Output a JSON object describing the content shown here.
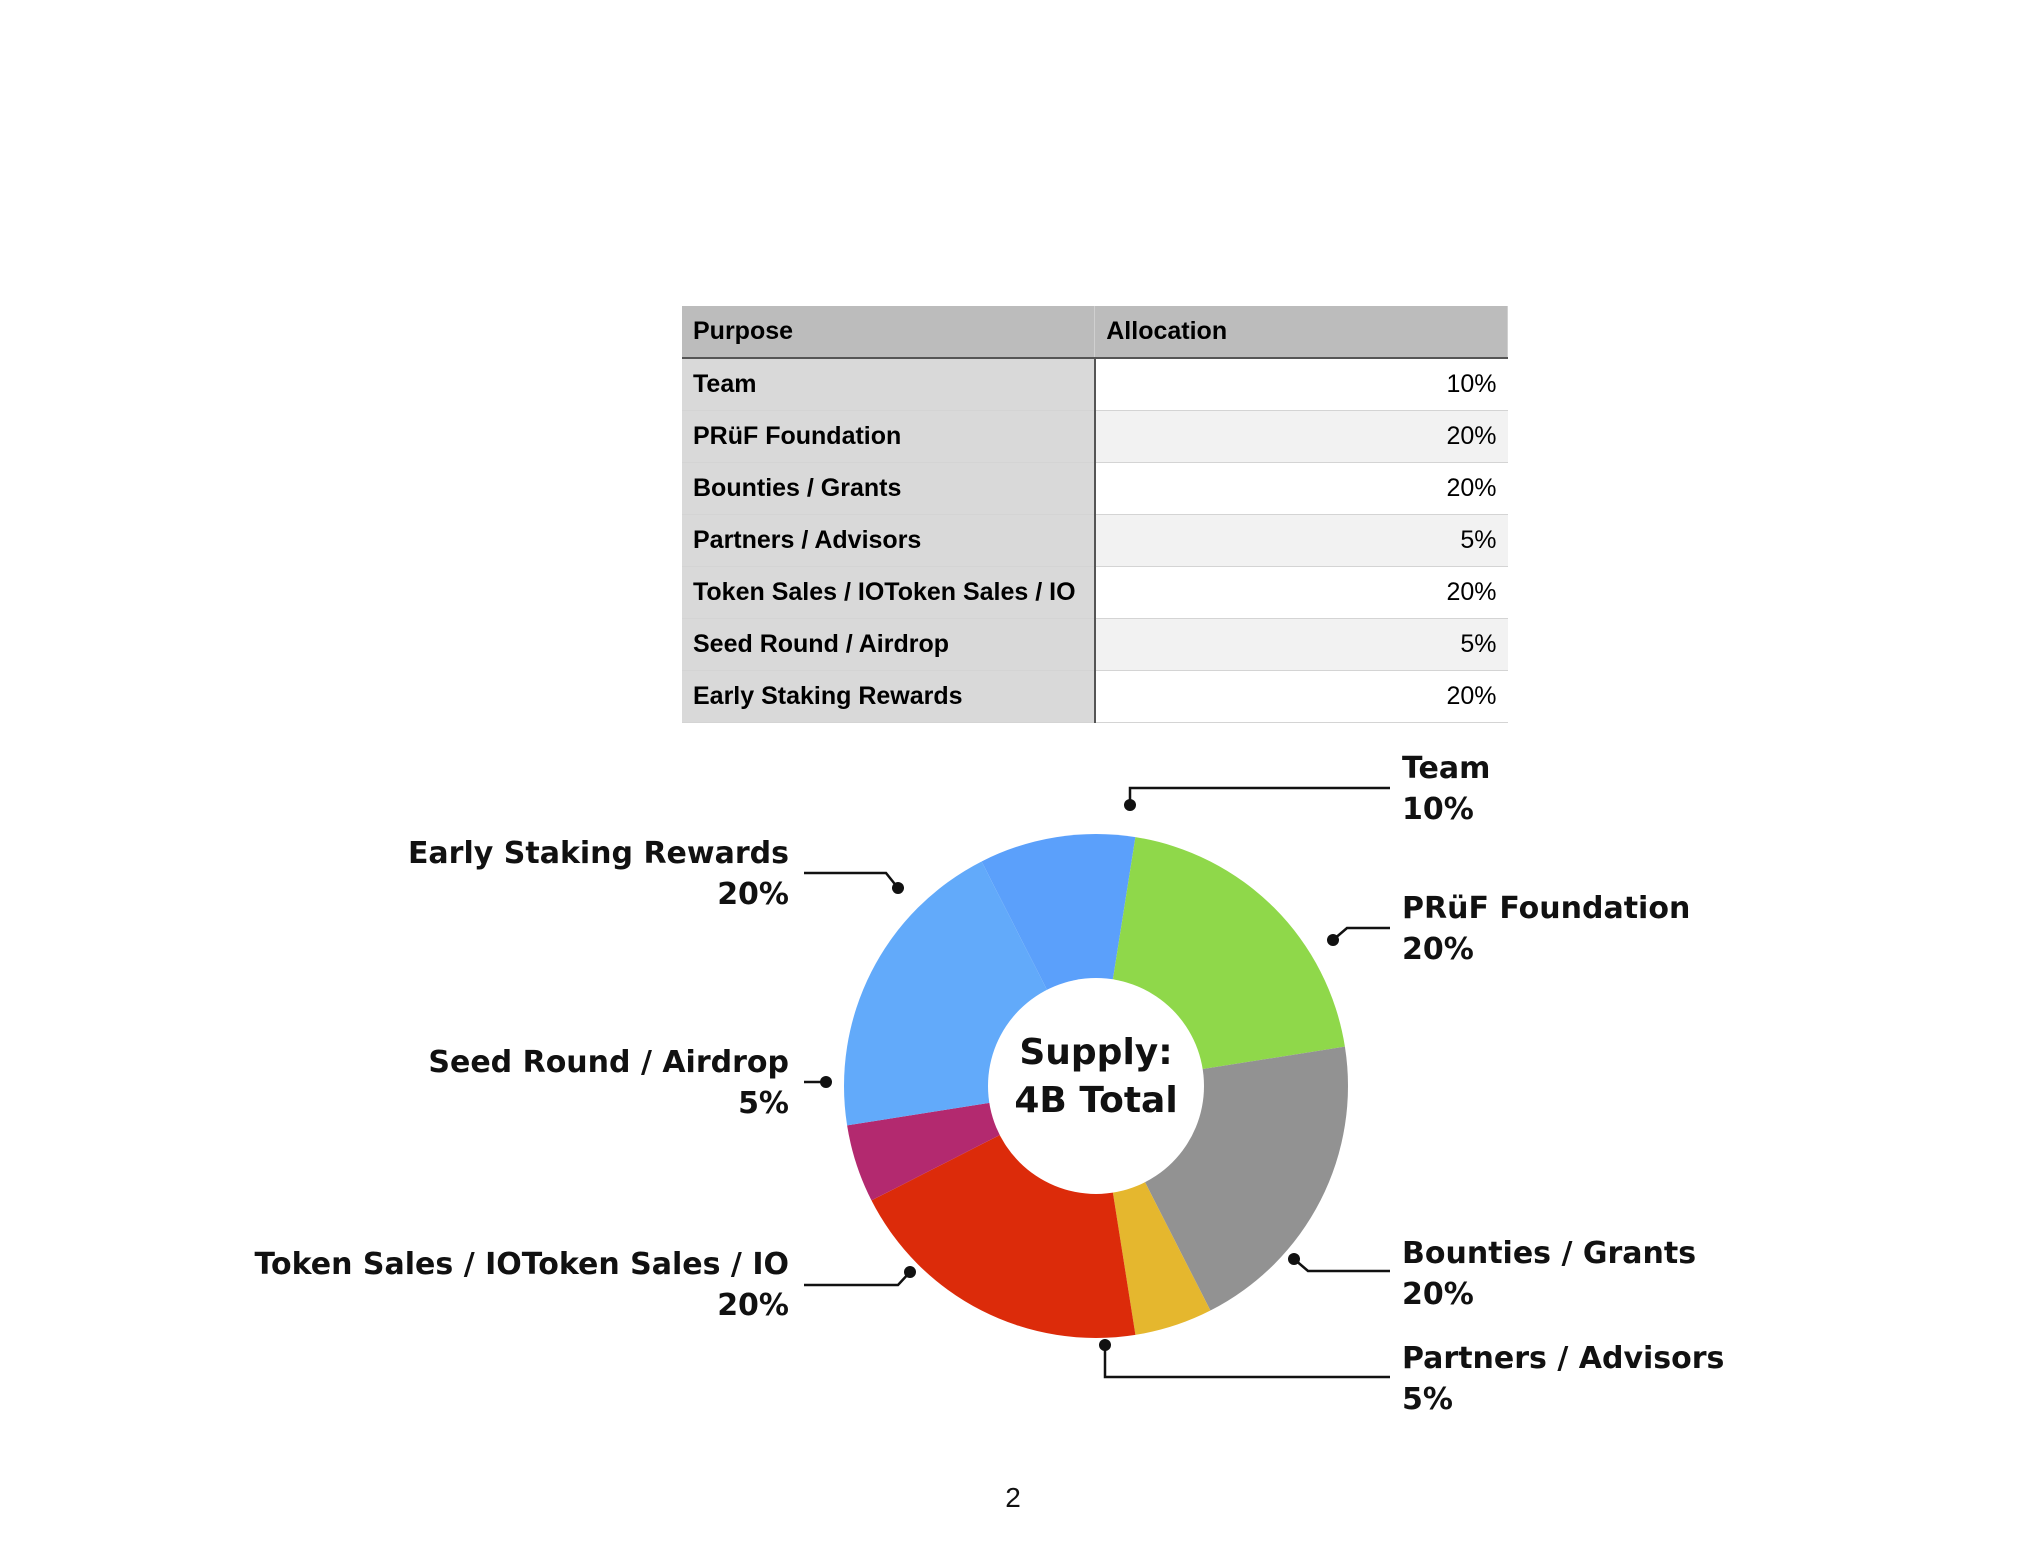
{
  "table": {
    "headers": [
      "Purpose",
      "Allocation"
    ],
    "rows": [
      [
        "Team",
        "10%"
      ],
      [
        "PRüF Foundation",
        "20%"
      ],
      [
        "Bounties / Grants",
        "20%"
      ],
      [
        "Partners / Advisors",
        "5%"
      ],
      [
        "Token Sales / IOToken Sales / IO",
        "20%"
      ],
      [
        "Seed Round / Airdrop",
        "5%"
      ],
      [
        "Early Staking Rewards",
        "20%"
      ]
    ]
  },
  "chart_data": {
    "type": "pie",
    "donut": true,
    "center_text": [
      "Supply:",
      "4B Total"
    ],
    "slices": [
      {
        "label": "Team",
        "value": 10,
        "display": "10%",
        "color": "#5ba0fb"
      },
      {
        "label": "PRüF Foundation",
        "value": 20,
        "display": "20%",
        "color": "#8fd84a"
      },
      {
        "label": "Bounties / Grants",
        "value": 20,
        "display": "20%",
        "color": "#929292"
      },
      {
        "label": "Partners / Advisors",
        "value": 5,
        "display": "5%",
        "color": "#e5b72e"
      },
      {
        "label": "Token Sales / IOToken Sales / IO",
        "value": 20,
        "display": "20%",
        "color": "#dc2b0a"
      },
      {
        "label": "Seed Round / Airdrop",
        "value": 5,
        "display": "5%",
        "color": "#b3296f"
      },
      {
        "label": "Early Staking Rewards",
        "value": 20,
        "display": "20%",
        "color": "#62aafa"
      }
    ]
  },
  "page_number": "2"
}
